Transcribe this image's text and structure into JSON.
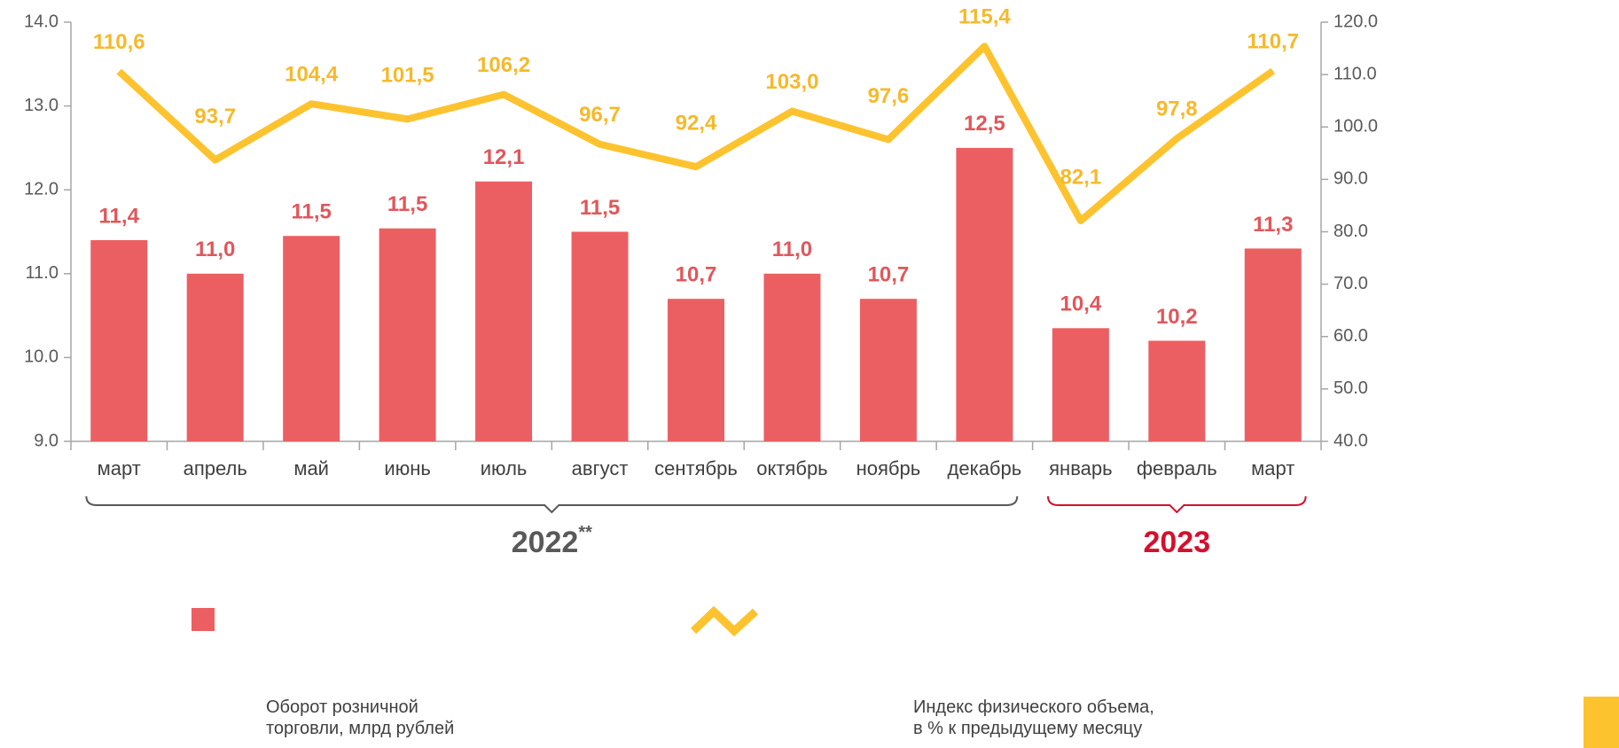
{
  "chart_data": {
    "type": "bar-line",
    "categories": [
      "март",
      "апрель",
      "май",
      "июнь",
      "июль",
      "август",
      "сентябрь",
      "октябрь",
      "ноябрь",
      "декабрь",
      "январь",
      "февраль",
      "март"
    ],
    "series": [
      {
        "name": "Оборот розничной торговли, млрд рублей",
        "type": "bar",
        "color": "#eb5f62",
        "label_color": "#e0575b",
        "values": [
          11.4,
          11.0,
          11.45,
          11.54,
          12.1,
          11.5,
          10.7,
          11.0,
          10.7,
          12.5,
          10.35,
          10.2,
          11.3
        ],
        "value_labels": [
          "11,4",
          "11,0",
          "11,5",
          "11,5",
          "12,1",
          "11,5",
          "10,7",
          "11,0",
          "10,7",
          "12,5",
          "10,4",
          "10,2",
          "11,3"
        ]
      },
      {
        "name": "Индекс физического объема, в % к предыдущему месяцу",
        "type": "line",
        "axis": "y2",
        "color": "#fdc32f",
        "label_color": "#f6b92b",
        "values": [
          110.6,
          93.7,
          104.4,
          101.5,
          106.2,
          96.7,
          92.4,
          103.0,
          97.6,
          115.4,
          82.1,
          97.8,
          110.7
        ],
        "value_labels": [
          "110,6",
          "93,7",
          "104,4",
          "101,5",
          "106,2",
          "96,7",
          "92,4",
          "103,0",
          "97,6",
          "115,4",
          "82,1",
          "97,8",
          "110,7"
        ]
      }
    ],
    "ylim": [
      9,
      14
    ],
    "yticks": [
      {
        "value": 9,
        "label": "9.0"
      },
      {
        "value": 10,
        "label": "10.0"
      },
      {
        "value": 11,
        "label": "11.0"
      },
      {
        "value": 12,
        "label": "12.0"
      },
      {
        "value": 13,
        "label": "13.0"
      },
      {
        "value": 14,
        "label": "14.0"
      }
    ],
    "y2lim": [
      40,
      120
    ],
    "y2ticks": [
      {
        "value": 40,
        "label": "40.0"
      },
      {
        "value": 50,
        "label": "50.0"
      },
      {
        "value": 60,
        "label": "60.0"
      },
      {
        "value": 70,
        "label": "70.0"
      },
      {
        "value": 80,
        "label": "80.0"
      },
      {
        "value": 90,
        "label": "90.0"
      },
      {
        "value": 100,
        "label": "100.0"
      },
      {
        "value": 110,
        "label": "110.0"
      },
      {
        "value": 120,
        "label": "120.0"
      }
    ],
    "groups": [
      {
        "label": "2022",
        "note": "**",
        "color": "#595959"
      },
      {
        "label": "2023",
        "color": "#d2112e"
      }
    ]
  }
}
